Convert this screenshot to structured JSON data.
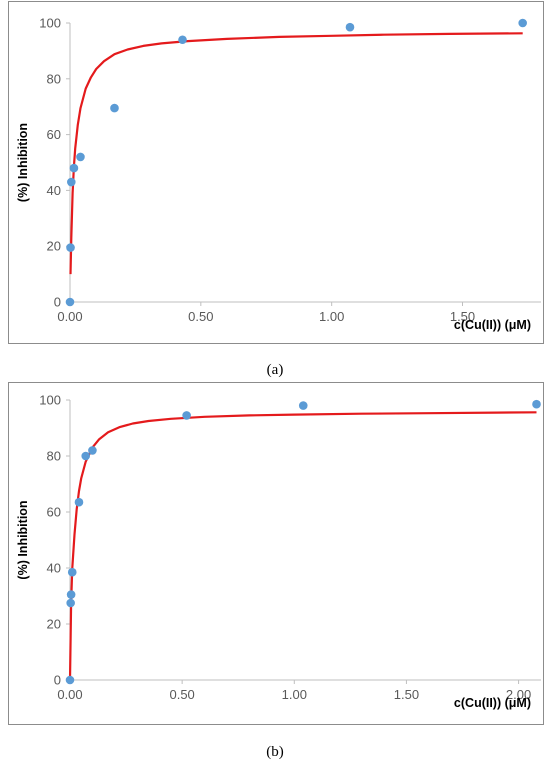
{
  "charts": [
    {
      "caption": "(a)",
      "chart_data": {
        "type": "scatter",
        "title": "",
        "xlabel": "c(Cu(II)) (μM)",
        "ylabel": "(%) Inhibition",
        "xlim": [
          0,
          1.8
        ],
        "ylim": [
          0,
          100
        ],
        "xticks": [
          0,
          0.5,
          1.0,
          1.5
        ],
        "xtick_labels": [
          "0.00",
          "0.50",
          "1.00",
          "1.50"
        ],
        "yticks": [
          0,
          20,
          40,
          60,
          80,
          100
        ],
        "ytick_labels": [
          "0",
          "20",
          "40",
          "60",
          "80",
          "100"
        ],
        "grid": false,
        "legend": "none",
        "series": [
          {
            "kind": "points",
            "color": "#5b9bd5",
            "x": [
              0.0,
              0.002,
              0.005,
              0.015,
              0.04,
              0.17,
              0.43,
              1.07,
              1.73
            ],
            "y": [
              0,
              19.5,
              43,
              48,
              52,
              69.5,
              94,
              98.5,
              100
            ]
          },
          {
            "kind": "fit-curve",
            "color": "#e41a1c",
            "x": [
              0.002,
              0.005,
              0.01,
              0.015,
              0.02,
              0.03,
              0.04,
              0.06,
              0.08,
              0.1,
              0.13,
              0.17,
              0.22,
              0.28,
              0.35,
              0.45,
              0.6,
              0.8,
              1.0,
              1.2,
              1.45,
              1.73
            ],
            "y": [
              10,
              23,
              39,
              48.5,
              55,
              63.5,
              69.5,
              76.5,
              80.5,
              83.5,
              86.3,
              88.8,
              90.5,
              91.8,
              92.7,
              93.5,
              94.3,
              95,
              95.4,
              95.8,
              96.1,
              96.3
            ]
          }
        ]
      }
    },
    {
      "caption": "(b)",
      "chart_data": {
        "type": "scatter",
        "title": "",
        "xlabel": "c(Cu(II)) (μM)",
        "ylabel": "(%) Inhibition",
        "xlim": [
          0,
          2.1
        ],
        "ylim": [
          0,
          100
        ],
        "xticks": [
          0,
          0.5,
          1.0,
          1.5,
          2.0
        ],
        "xtick_labels": [
          "0.00",
          "0.50",
          "1.00",
          "1.50",
          "2.00"
        ],
        "yticks": [
          0,
          20,
          40,
          60,
          80,
          100
        ],
        "ytick_labels": [
          "0",
          "20",
          "40",
          "60",
          "80",
          "100"
        ],
        "grid": false,
        "legend": "none",
        "series": [
          {
            "kind": "points",
            "color": "#5b9bd5",
            "x": [
              0.0,
              0.003,
              0.005,
              0.01,
              0.04,
              0.07,
              0.1,
              0.52,
              1.04,
              2.08
            ],
            "y": [
              0,
              27.5,
              30.5,
              38.5,
              63.5,
              80,
              82,
              94.5,
              98,
              98.5
            ]
          },
          {
            "kind": "fit-curve",
            "color": "#e41a1c",
            "x": [
              0.0,
              0.005,
              0.01,
              0.02,
              0.03,
              0.04,
              0.05,
              0.07,
              0.1,
              0.13,
              0.17,
              0.22,
              0.28,
              0.35,
              0.45,
              0.6,
              0.8,
              1.0,
              1.3,
              1.6,
              1.9,
              2.08
            ],
            "y": [
              0,
              27,
              39.5,
              52,
              61,
              67.5,
              72,
              78,
              83,
              86,
              88.5,
              90.3,
              91.6,
              92.5,
              93.3,
              94,
              94.5,
              94.8,
              95.1,
              95.3,
              95.5,
              95.6
            ]
          }
        ]
      }
    }
  ]
}
